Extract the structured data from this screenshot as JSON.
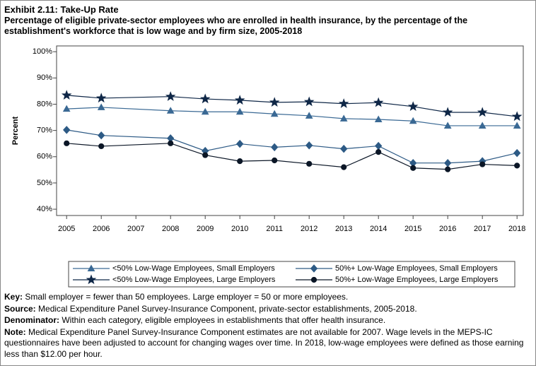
{
  "chart_data": {
    "type": "line",
    "title": "Exhibit 2.11: Take-Up Rate",
    "subtitle": "Percentage of eligible private-sector employees who are enrolled in health insurance, by the percentage of the establishment's workforce that is low wage and by firm size, 2005-2018",
    "y_label": "Percent",
    "x": [
      2005,
      2006,
      2008,
      2009,
      2010,
      2011,
      2012,
      2013,
      2014,
      2015,
      2016,
      2017,
      2018
    ],
    "xlim": [
      2004.71,
      2018.18
    ],
    "xticks": [
      2005,
      2006,
      2007,
      2008,
      2009,
      2010,
      2011,
      2012,
      2013,
      2014,
      2015,
      2016,
      2017,
      2018
    ],
    "ylim": [
      37.6,
      102.2
    ],
    "yticks": [
      {
        "value": 40,
        "label": "40%"
      },
      {
        "value": 50,
        "label": "50%"
      },
      {
        "value": 60,
        "label": "60%"
      },
      {
        "value": 70,
        "label": "70%"
      },
      {
        "value": 80,
        "label": "80%"
      },
      {
        "value": 90,
        "label": "90%"
      },
      {
        "value": 100,
        "label": "100%"
      }
    ],
    "grid": false,
    "legend": "bottom",
    "series": [
      {
        "name": "<50% Low-Wage Employees, Small Employers",
        "color": "#3a6994",
        "marker": "triangle",
        "values": [
          78.2,
          78.8,
          77.5,
          77.1,
          77.1,
          76.3,
          75.6,
          74.5,
          74.2,
          73.6,
          71.8,
          71.8,
          71.8
        ]
      },
      {
        "name": "50%+ Low-Wage Employees, Small Employers",
        "color": "#2d5a85",
        "marker": "diamond",
        "values": [
          70.2,
          68.1,
          67.0,
          62.2,
          64.9,
          63.6,
          64.3,
          63.0,
          64.1,
          57.6,
          57.6,
          58.3,
          61.4
        ]
      },
      {
        "name": "<50% Low-Wage Employees, Large Employers",
        "color": "#0f2747",
        "marker": "star",
        "values": [
          83.4,
          82.3,
          82.9,
          82.0,
          81.5,
          80.7,
          80.9,
          80.2,
          80.6,
          79.1,
          76.9,
          76.9,
          75.3
        ]
      },
      {
        "name": "50%+ Low-Wage Employees, Large Employers",
        "color": "#0b1626",
        "marker": "circle",
        "values": [
          65.1,
          64.0,
          65.1,
          60.6,
          58.3,
          58.6,
          57.3,
          56.0,
          61.8,
          55.7,
          55.2,
          57.1,
          56.6
        ]
      }
    ],
    "notes": [
      {
        "label": "Key:",
        "text": "Small employer = fewer than 50 employees. Large employer = 50 or more employees."
      },
      {
        "label": "Source:",
        "text": "Medical Expenditure Panel Survey-Insurance Component, private-sector establishments, 2005-2018."
      },
      {
        "label": "Denominator:",
        "text": "Within each category, eligible employees in establishments that offer health insurance."
      },
      {
        "label": "Note:",
        "text": "Medical Expenditure Panel Survey-Insurance Component estimates are not available for 2007. Wage levels in the MEPS-IC questionnaires have been adjusted to account for changing wages over time. In 2018, low-wage employees were defined as those earning less than $12.00 per hour."
      }
    ]
  }
}
